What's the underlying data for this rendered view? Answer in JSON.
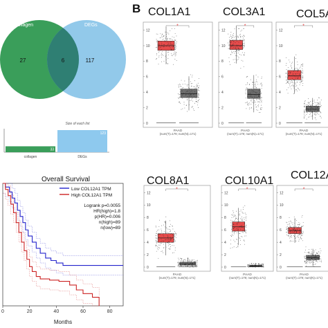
{
  "panel_b_letter": "B",
  "venn": {
    "left_label": "collagen",
    "right_label": "DEGs",
    "left_only": "27",
    "overlap": "6",
    "right_only": "117",
    "left_color": "#3a9e5a",
    "right_color": "#7fc0e6"
  },
  "bar_chart": {
    "title": "Size of each list",
    "bars": [
      {
        "label": "collagen",
        "value": 33,
        "color": "#3a9e5a"
      },
      {
        "label": "DEGs",
        "value": 123,
        "color": "#8ec9ee"
      }
    ]
  },
  "survival": {
    "title": "Overall Survival",
    "xlabel": "Months",
    "x_ticks": [
      "0",
      "20",
      "40",
      "60",
      "80"
    ],
    "legend": [
      {
        "label": "Low COL12A1 TPM",
        "color": "#2222cc"
      },
      {
        "label": "High COL12A1 TPM",
        "color": "#cc2222"
      }
    ],
    "stats": [
      "Logrank p=0.0055",
      "HR(high)=1.8",
      "p(HR)=0.006",
      "n(high)=89",
      "n(low)=89"
    ]
  },
  "boxplots": [
    {
      "gene": "COL1A1",
      "cancer": "PAAD",
      "n_text": "(num(T)=179; num(N)=171)",
      "tumor": {
        "q1": 9.4,
        "median": 10.0,
        "q3": 10.6
      },
      "normal": {
        "q1": 3.3,
        "median": 3.8,
        "q3": 4.4
      }
    },
    {
      "gene": "COL3A1",
      "cancer": "PAAD",
      "n_text": "(num(T)=179; num(N)=171)",
      "tumor": {
        "q1": 9.5,
        "median": 10.0,
        "q3": 10.7
      },
      "normal": {
        "q1": 3.2,
        "median": 3.7,
        "q3": 4.4
      }
    },
    {
      "gene": "COL5A",
      "cancer": "PAAD",
      "n_text": "(num(T)=179; num(N)=171)",
      "tumor": {
        "q1": 5.6,
        "median": 6.1,
        "q3": 6.8
      },
      "normal": {
        "q1": 1.5,
        "median": 1.8,
        "q3": 2.2
      }
    },
    {
      "gene": "COL8A1",
      "cancer": "PAAD",
      "n_text": "(num(T)=179; num(N)=171)",
      "tumor": {
        "q1": 4.0,
        "median": 4.7,
        "q3": 5.4
      },
      "normal": {
        "q1": 0.3,
        "median": 0.5,
        "q3": 0.8
      }
    },
    {
      "gene": "COL10A1",
      "cancer": "PAAD",
      "n_text": "(num(T)=179; num(N)=171)",
      "tumor": {
        "q1": 5.8,
        "median": 6.5,
        "q3": 7.3
      },
      "normal": {
        "q1": 0.05,
        "median": 0.15,
        "q3": 0.3
      }
    },
    {
      "gene": "COL12A",
      "cancer": "PAAD",
      "n_text": "(num(T)=179; num(N)=171)",
      "tumor": {
        "q1": 5.4,
        "median": 5.9,
        "q3": 6.4
      },
      "normal": {
        "q1": 1.2,
        "median": 1.5,
        "q3": 1.9
      }
    }
  ],
  "boxplot_yticks": [
    "0",
    "2",
    "4",
    "6",
    "8",
    "10",
    "12"
  ],
  "significance_mark": "*",
  "tumor_color": "#e64b4b",
  "normal_color": "#6e6e6e"
}
